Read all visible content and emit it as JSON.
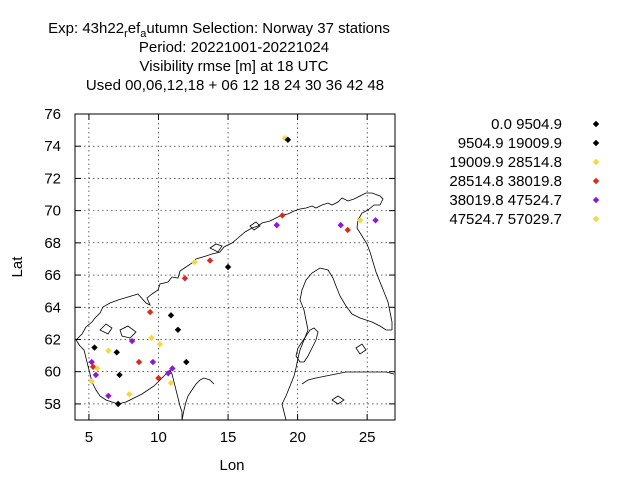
{
  "title": {
    "line1_a": "Exp: 43h22",
    "line1_sub1": "r",
    "line1_b": "ef",
    "line1_sub2": "a",
    "line1_c": "utumn   Selection: Norway     37 stations",
    "line2": "Period: 20221001-20221024",
    "line3": "Visibility rmse [m] at  18 UTC",
    "line4": "Used  00,06,12,18  + 06 12 18 24 30 36 42 48"
  },
  "chart_data": {
    "type": "scatter",
    "xlabel": "Lon",
    "ylabel": "Lat",
    "xlim": [
      4,
      27
    ],
    "ylim": [
      57,
      76
    ],
    "xticks": [
      5,
      10,
      15,
      20,
      25
    ],
    "yticks": [
      58,
      60,
      62,
      64,
      66,
      68,
      70,
      72,
      74,
      76
    ],
    "grid": true,
    "legend_position": "right",
    "classes": [
      {
        "label": "0.0 9504.9",
        "color": "#000000"
      },
      {
        "label": "9504.9 19009.9",
        "color": "#000000"
      },
      {
        "label": "19009.9 28514.8",
        "color": "#f5d742"
      },
      {
        "label": "28514.8 38019.8",
        "color": "#dd2a1a"
      },
      {
        "label": "38019.8 47524.7",
        "color": "#8a1ad8"
      },
      {
        "label": "47524.7 57029.7",
        "color": "#f5d742"
      }
    ],
    "points": [
      {
        "lon": 19.1,
        "lat": 74.5,
        "class": 5
      },
      {
        "lon": 19.3,
        "lat": 74.4,
        "class": 0
      },
      {
        "lon": 18.9,
        "lat": 69.7,
        "class": 3
      },
      {
        "lon": 18.5,
        "lat": 69.1,
        "class": 4
      },
      {
        "lon": 23.1,
        "lat": 69.1,
        "class": 4
      },
      {
        "lon": 23.6,
        "lat": 68.8,
        "class": 3
      },
      {
        "lon": 24.5,
        "lat": 69.4,
        "class": 5
      },
      {
        "lon": 25.6,
        "lat": 69.4,
        "class": 4
      },
      {
        "lon": 12.6,
        "lat": 66.8,
        "class": 2
      },
      {
        "lon": 13.7,
        "lat": 66.9,
        "class": 3
      },
      {
        "lon": 15.0,
        "lat": 66.5,
        "class": 0
      },
      {
        "lon": 11.9,
        "lat": 65.8,
        "class": 3
      },
      {
        "lon": 9.4,
        "lat": 63.7,
        "class": 3
      },
      {
        "lon": 10.9,
        "lat": 63.5,
        "class": 0
      },
      {
        "lon": 11.4,
        "lat": 62.6,
        "class": 0
      },
      {
        "lon": 9.5,
        "lat": 62.1,
        "class": 2
      },
      {
        "lon": 10.1,
        "lat": 61.7,
        "class": 5
      },
      {
        "lon": 8.1,
        "lat": 61.9,
        "class": 4
      },
      {
        "lon": 5.4,
        "lat": 61.5,
        "class": 0
      },
      {
        "lon": 6.4,
        "lat": 61.3,
        "class": 5
      },
      {
        "lon": 7.0,
        "lat": 61.2,
        "class": 0
      },
      {
        "lon": 5.2,
        "lat": 60.6,
        "class": 4
      },
      {
        "lon": 5.3,
        "lat": 60.3,
        "class": 3
      },
      {
        "lon": 5.6,
        "lat": 60.2,
        "class": 5
      },
      {
        "lon": 5.5,
        "lat": 59.8,
        "class": 4
      },
      {
        "lon": 5.2,
        "lat": 59.4,
        "class": 5
      },
      {
        "lon": 8.6,
        "lat": 60.6,
        "class": 3
      },
      {
        "lon": 9.6,
        "lat": 60.6,
        "class": 4
      },
      {
        "lon": 12.0,
        "lat": 60.6,
        "class": 0
      },
      {
        "lon": 7.2,
        "lat": 59.8,
        "class": 0
      },
      {
        "lon": 11.0,
        "lat": 60.2,
        "class": 4
      },
      {
        "lon": 10.7,
        "lat": 59.9,
        "class": 4
      },
      {
        "lon": 10.0,
        "lat": 59.6,
        "class": 3
      },
      {
        "lon": 10.9,
        "lat": 59.3,
        "class": 5
      },
      {
        "lon": 6.4,
        "lat": 58.5,
        "class": 4
      },
      {
        "lon": 7.9,
        "lat": 58.6,
        "class": 2
      },
      {
        "lon": 7.1,
        "lat": 58.0,
        "class": 0
      }
    ]
  }
}
